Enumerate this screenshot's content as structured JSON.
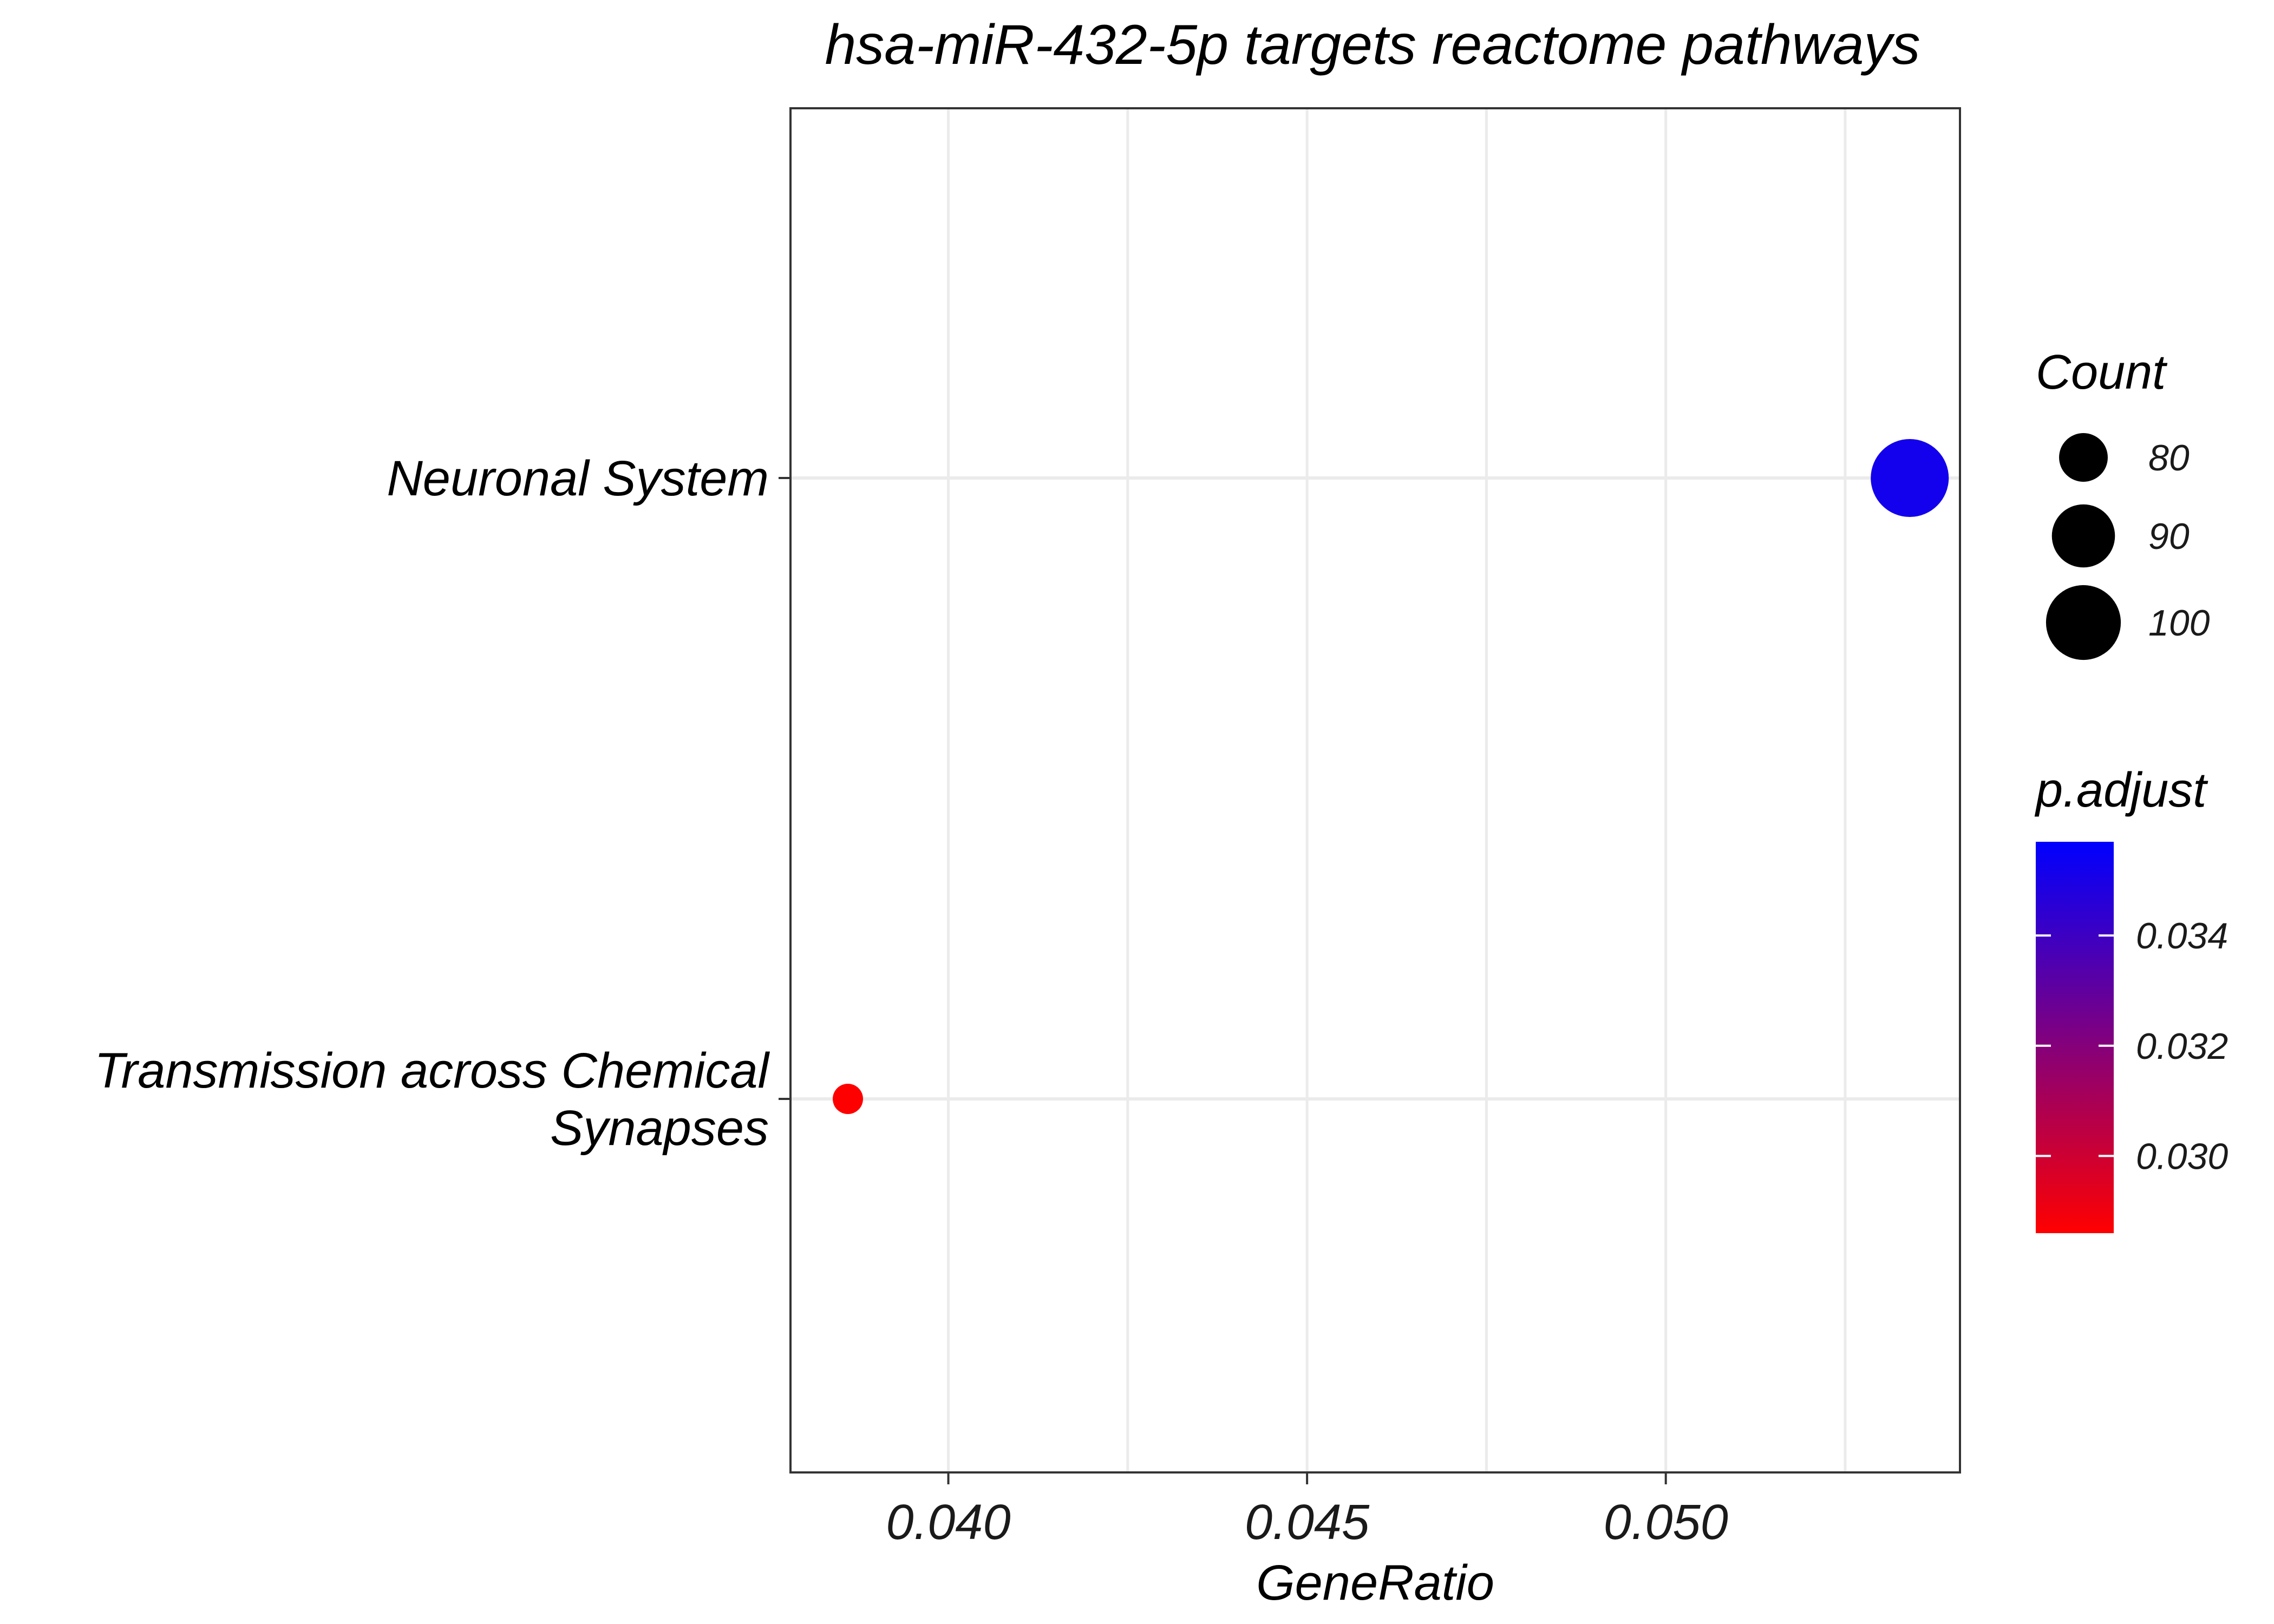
{
  "chart_data": {
    "type": "scatter",
    "title": "hsa-miR-432-5p targets reactome pathways",
    "xlabel": "GeneRatio",
    "ylabel": "",
    "xlim": [
      0.0378,
      0.0541
    ],
    "x_ticks": [
      0.04,
      0.045,
      0.05
    ],
    "x_tick_labels": [
      "0.040",
      "0.045",
      "0.050"
    ],
    "grid": true,
    "categories": [
      [
        "Neuronal System"
      ],
      [
        "Transmission across Chemical",
        "Synapses"
      ]
    ],
    "points": [
      {
        "x": 0.0534,
        "count": 103,
        "p_adjust": 0.0356,
        "color": "#1300ec"
      },
      {
        "x": 0.0386,
        "count": 71,
        "p_adjust": 0.0286,
        "color": "#ff0000"
      }
    ],
    "legend": {
      "placement": "right",
      "size": {
        "title": "Count",
        "range": [
          71,
          103
        ],
        "entries": [
          {
            "value": 80,
            "label": "80"
          },
          {
            "value": 90,
            "label": "90"
          },
          {
            "value": 100,
            "label": "100"
          }
        ]
      },
      "color": {
        "title": "p.adjust",
        "range": [
          0.0286,
          0.0357
        ],
        "low_color": "#ff0000",
        "high_color": "#0000ff",
        "ticks": [
          {
            "value": 0.03,
            "label": "0.030"
          },
          {
            "value": 0.032,
            "label": "0.032"
          },
          {
            "value": 0.034,
            "label": "0.034"
          }
        ]
      }
    }
  }
}
